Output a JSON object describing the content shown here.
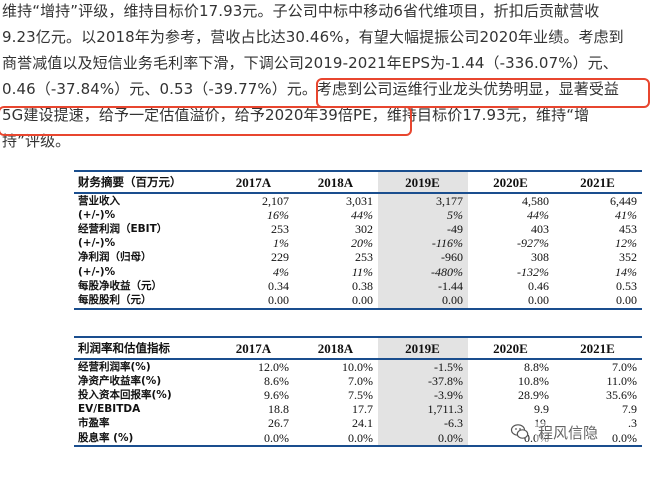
{
  "paragraph": {
    "lines": [
      "维持“增持”评级，维持目标价17.93元。子公司中标中移动6省代维项目，折扣后贡献营收",
      "9.23亿元。以2018年为参考，营收占比达30.46%，有望大幅提振公司2020年业绩。考虑到",
      "商誉减值以及短信业务毛利率下滑，下调公司2019-2021年EPS为-1.44（-336.07%）元、",
      "0.46（-37.84%）元、0.53（-39.77%）元。考虑到公司运维行业龙头优势明显，显著受益",
      "5G建设提速，给予一定估值溢价，给予2020年39倍PE，维持目标价17.93元，维持“增",
      "持”评级。"
    ]
  },
  "colors": {
    "text": "#333333",
    "highlight_border": "#e8462f",
    "table_rule": "#1a4e8e",
    "shaded_column": "#e3e3e3"
  },
  "table1": {
    "header": [
      "财务摘要（百万元）",
      "2017A",
      "2018A",
      "2019E",
      "2020E",
      "2021E"
    ],
    "rows": [
      {
        "label": "营业收入",
        "values": [
          "2,107",
          "3,031",
          "3,177",
          "4,580",
          "6,449"
        ],
        "italic": false
      },
      {
        "label": "(+/-)%",
        "values": [
          "16%",
          "44%",
          "5%",
          "44%",
          "41%"
        ],
        "italic": true
      },
      {
        "label": "经营利润（EBIT）",
        "values": [
          "253",
          "302",
          "-49",
          "403",
          "453"
        ],
        "italic": false
      },
      {
        "label": "(+/-)%",
        "values": [
          "1%",
          "20%",
          "-116%",
          "-927%",
          "12%"
        ],
        "italic": true
      },
      {
        "label": "净利润（归母）",
        "values": [
          "229",
          "253",
          "-960",
          "308",
          "352"
        ],
        "italic": false
      },
      {
        "label": "(+/-)%",
        "values": [
          "4%",
          "11%",
          "-480%",
          "-132%",
          "14%"
        ],
        "italic": true
      },
      {
        "label": "每股净收益（元）",
        "values": [
          "0.34",
          "0.38",
          "-1.44",
          "0.46",
          "0.53"
        ],
        "italic": false
      },
      {
        "label": "每股股利（元）",
        "values": [
          "0.00",
          "0.00",
          "0.00",
          "0.00",
          "0.00"
        ],
        "italic": false
      }
    ]
  },
  "table2": {
    "header": [
      "利润率和估值指标",
      "2017A",
      "2018A",
      "2019E",
      "2020E",
      "2021E"
    ],
    "rows": [
      {
        "label": "经营利润率(%)",
        "values": [
          "12.0%",
          "10.0%",
          "-1.5%",
          "8.8%",
          "7.0%"
        ]
      },
      {
        "label": "净资产收益率(%)",
        "values": [
          "8.6%",
          "7.0%",
          "-37.8%",
          "10.8%",
          "11.0%"
        ]
      },
      {
        "label": "投入资本回报率(%)",
        "values": [
          "9.6%",
          "7.5%",
          "-3.9%",
          "28.9%",
          "35.6%"
        ]
      },
      {
        "label": "EV/EBITDA",
        "values": [
          "18.8",
          "17.7",
          "1,711.3",
          "9.9",
          "7.9"
        ]
      },
      {
        "label": "市盈率",
        "values": [
          "26.7",
          "24.1",
          "-6.3",
          "19.",
          ".3"
        ]
      },
      {
        "label": "股息率 (%)",
        "values": [
          "0.0%",
          "0.0%",
          "0.0%",
          "0.0%",
          "0.0%"
        ]
      }
    ]
  },
  "watermark": {
    "text": "程风信隐",
    "icon": "wechat-icon"
  }
}
